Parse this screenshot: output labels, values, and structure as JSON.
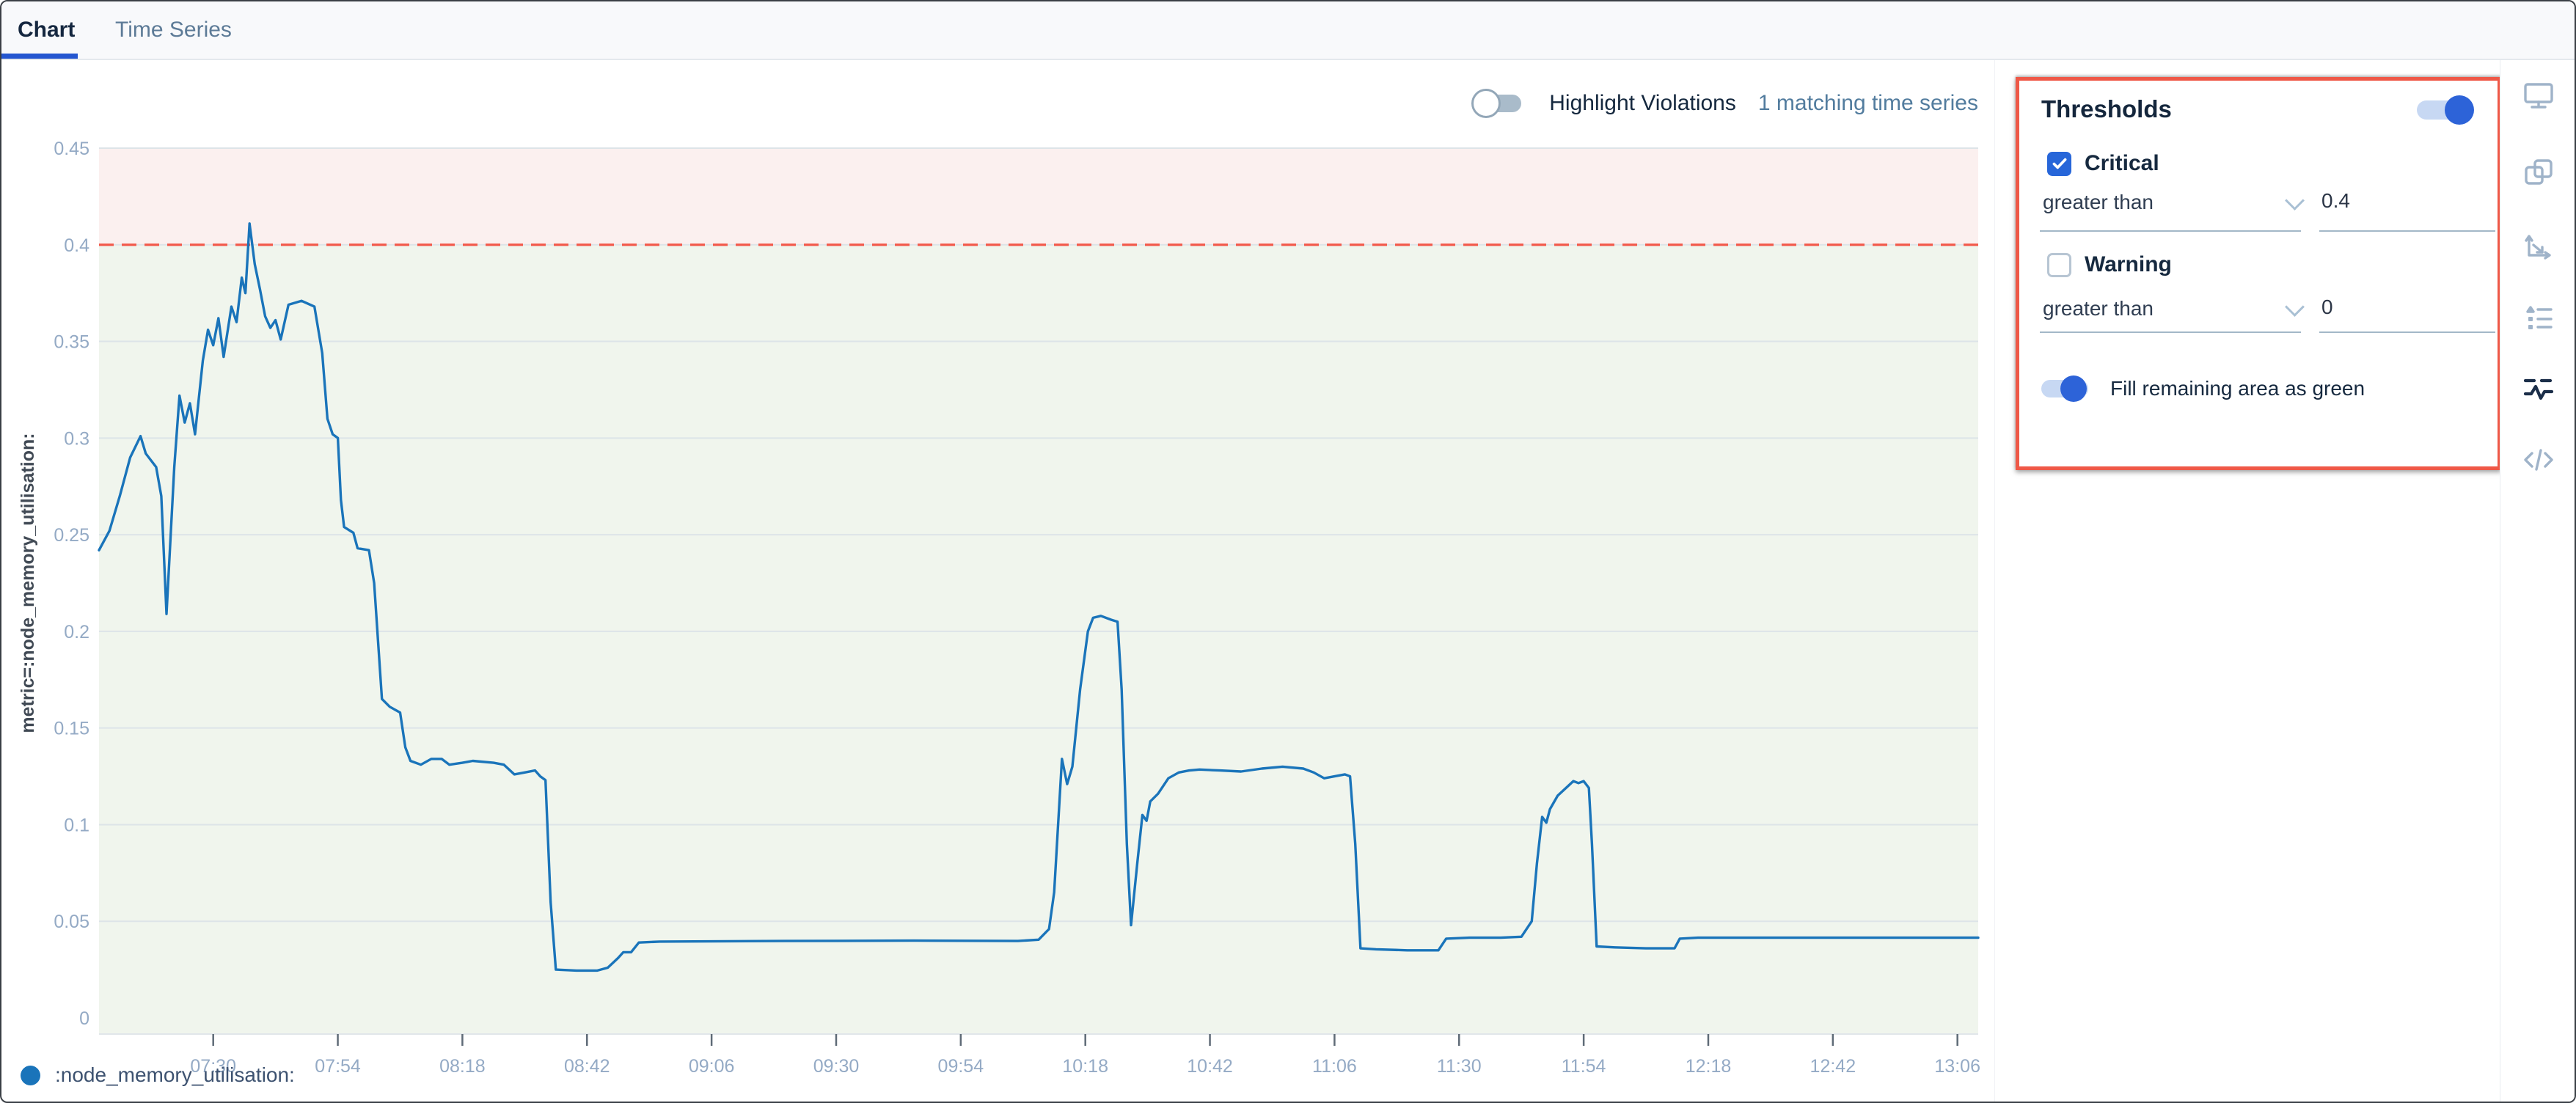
{
  "tabs": {
    "chart": "Chart",
    "time_series": "Time Series"
  },
  "chart_header": {
    "highlight_label": "Highlight Violations",
    "matching_text": "1 matching time series"
  },
  "chart_data": {
    "type": "line",
    "title": "",
    "ylabel": "metric=:node_memory_utilisation:",
    "xlabel": "",
    "ylim": [
      0,
      0.45
    ],
    "y_tick_labels": [
      "0",
      "0.05",
      "0.1",
      "0.15",
      "0.2",
      "0.25",
      "0.3",
      "0.35",
      "0.4",
      "0.45"
    ],
    "x_tick_labels": [
      "07:30",
      "07:54",
      "08:18",
      "08:42",
      "09:06",
      "09:30",
      "09:54",
      "10:18",
      "10:42",
      "11:06",
      "11:30",
      "11:54",
      "12:18",
      "12:42",
      "13:06"
    ],
    "x_domain_minutes": [
      428,
      790
    ],
    "grid": true,
    "legend_position": "bottom-left",
    "threshold": {
      "critical_value": 0.4,
      "line_color": "#f2584a",
      "line_style": "dashed",
      "above_fill": "#fbf0ef",
      "below_fill": "#f0f5ed"
    },
    "series": [
      {
        "name": ":node_memory_utilisation:",
        "color": "#1a74ba",
        "points": [
          [
            428,
            0.242
          ],
          [
            430,
            0.252
          ],
          [
            432,
            0.27
          ],
          [
            434,
            0.29
          ],
          [
            436,
            0.301
          ],
          [
            437,
            0.292
          ],
          [
            439,
            0.285
          ],
          [
            440,
            0.27
          ],
          [
            441,
            0.209
          ],
          [
            442.5,
            0.285
          ],
          [
            443.5,
            0.322
          ],
          [
            444.5,
            0.308
          ],
          [
            445.5,
            0.318
          ],
          [
            446.5,
            0.302
          ],
          [
            448,
            0.34
          ],
          [
            449,
            0.356
          ],
          [
            450,
            0.348
          ],
          [
            451,
            0.362
          ],
          [
            452,
            0.342
          ],
          [
            453.5,
            0.368
          ],
          [
            454.5,
            0.36
          ],
          [
            455.5,
            0.383
          ],
          [
            456.2,
            0.375
          ],
          [
            457,
            0.411
          ],
          [
            458,
            0.39
          ],
          [
            459,
            0.377
          ],
          [
            460,
            0.363
          ],
          [
            461,
            0.357
          ],
          [
            462,
            0.361
          ],
          [
            463,
            0.351
          ],
          [
            464.5,
            0.369
          ],
          [
            467,
            0.371
          ],
          [
            469.5,
            0.368
          ],
          [
            471,
            0.344
          ],
          [
            472,
            0.31
          ],
          [
            473,
            0.302
          ],
          [
            474,
            0.3
          ],
          [
            474.6,
            0.268
          ],
          [
            475.2,
            0.254
          ],
          [
            477,
            0.251
          ],
          [
            477.8,
            0.243
          ],
          [
            480,
            0.242
          ],
          [
            481,
            0.225
          ],
          [
            482.5,
            0.165
          ],
          [
            484,
            0.161
          ],
          [
            486,
            0.158
          ],
          [
            487,
            0.14
          ],
          [
            488,
            0.133
          ],
          [
            490,
            0.131
          ],
          [
            492,
            0.134
          ],
          [
            494,
            0.134
          ],
          [
            495.5,
            0.131
          ],
          [
            498,
            0.132
          ],
          [
            500,
            0.133
          ],
          [
            504,
            0.132
          ],
          [
            506,
            0.131
          ],
          [
            508,
            0.126
          ],
          [
            510,
            0.127
          ],
          [
            512,
            0.128
          ],
          [
            513,
            0.125
          ],
          [
            514,
            0.123
          ],
          [
            515,
            0.06
          ],
          [
            516,
            0.025
          ],
          [
            520,
            0.0245
          ],
          [
            524,
            0.0245
          ],
          [
            526,
            0.026
          ],
          [
            528,
            0.031
          ],
          [
            529,
            0.034
          ],
          [
            530.5,
            0.034
          ],
          [
            532,
            0.039
          ],
          [
            536,
            0.0395
          ],
          [
            560,
            0.0398
          ],
          [
            585,
            0.04
          ],
          [
            605,
            0.0398
          ],
          [
            609,
            0.0405
          ],
          [
            611,
            0.046
          ],
          [
            612,
            0.065
          ],
          [
            613.5,
            0.134
          ],
          [
            614.5,
            0.121
          ],
          [
            615.5,
            0.13
          ],
          [
            617,
            0.17
          ],
          [
            618.5,
            0.2
          ],
          [
            619.5,
            0.207
          ],
          [
            621,
            0.208
          ],
          [
            623,
            0.206
          ],
          [
            624.2,
            0.205
          ],
          [
            625,
            0.17
          ],
          [
            626,
            0.09
          ],
          [
            626.8,
            0.048
          ],
          [
            628,
            0.08
          ],
          [
            629,
            0.105
          ],
          [
            629.8,
            0.102
          ],
          [
            630.5,
            0.112
          ],
          [
            632,
            0.116
          ],
          [
            634,
            0.124
          ],
          [
            636,
            0.127
          ],
          [
            638,
            0.128
          ],
          [
            640,
            0.1285
          ],
          [
            644,
            0.128
          ],
          [
            648,
            0.1275
          ],
          [
            652,
            0.129
          ],
          [
            656,
            0.13
          ],
          [
            660,
            0.129
          ],
          [
            662,
            0.127
          ],
          [
            664,
            0.124
          ],
          [
            666,
            0.125
          ],
          [
            668,
            0.126
          ],
          [
            669,
            0.125
          ],
          [
            670,
            0.09
          ],
          [
            671,
            0.036
          ],
          [
            674,
            0.0355
          ],
          [
            680,
            0.035
          ],
          [
            686,
            0.035
          ],
          [
            687.5,
            0.041
          ],
          [
            692,
            0.0415
          ],
          [
            698,
            0.0415
          ],
          [
            702,
            0.042
          ],
          [
            704,
            0.05
          ],
          [
            705,
            0.08
          ],
          [
            706,
            0.104
          ],
          [
            706.8,
            0.101
          ],
          [
            707.5,
            0.108
          ],
          [
            709,
            0.115
          ],
          [
            711,
            0.12
          ],
          [
            712,
            0.1225
          ],
          [
            713,
            0.1215
          ],
          [
            714,
            0.1225
          ],
          [
            715,
            0.119
          ],
          [
            715.6,
            0.09
          ],
          [
            716.5,
            0.037
          ],
          [
            720,
            0.0365
          ],
          [
            726,
            0.036
          ],
          [
            731.5,
            0.036
          ],
          [
            732.5,
            0.041
          ],
          [
            736,
            0.0415
          ],
          [
            750,
            0.0415
          ],
          [
            770,
            0.0415
          ],
          [
            790,
            0.0415
          ]
        ]
      }
    ]
  },
  "legend": {
    "label": ":node_memory_utilisation:"
  },
  "panel": {
    "title": "Thresholds",
    "enabled": true,
    "critical": {
      "label": "Critical",
      "checked": true,
      "operator": "greater than",
      "value": "0.4"
    },
    "warning": {
      "label": "Warning",
      "checked": false,
      "operator": "greater than",
      "value": "0"
    },
    "fill_label": "Fill remaining area as green",
    "fill_on": true,
    "annotation_color": "#ef5847"
  },
  "toolbar": {
    "icons": [
      "monitor",
      "overlapping-windows",
      "chart-axes",
      "list",
      "thresholds",
      "code"
    ],
    "active_icon": "thresholds"
  },
  "colors": {
    "accent_blue": "#2d63d8",
    "tab_underline": "#2456d0",
    "series_blue": "#1a74ba",
    "threshold_red": "#f2584a",
    "annotation_red": "#ef5847",
    "grid_line": "#dde4e8",
    "tick_label": "#94aac5"
  }
}
